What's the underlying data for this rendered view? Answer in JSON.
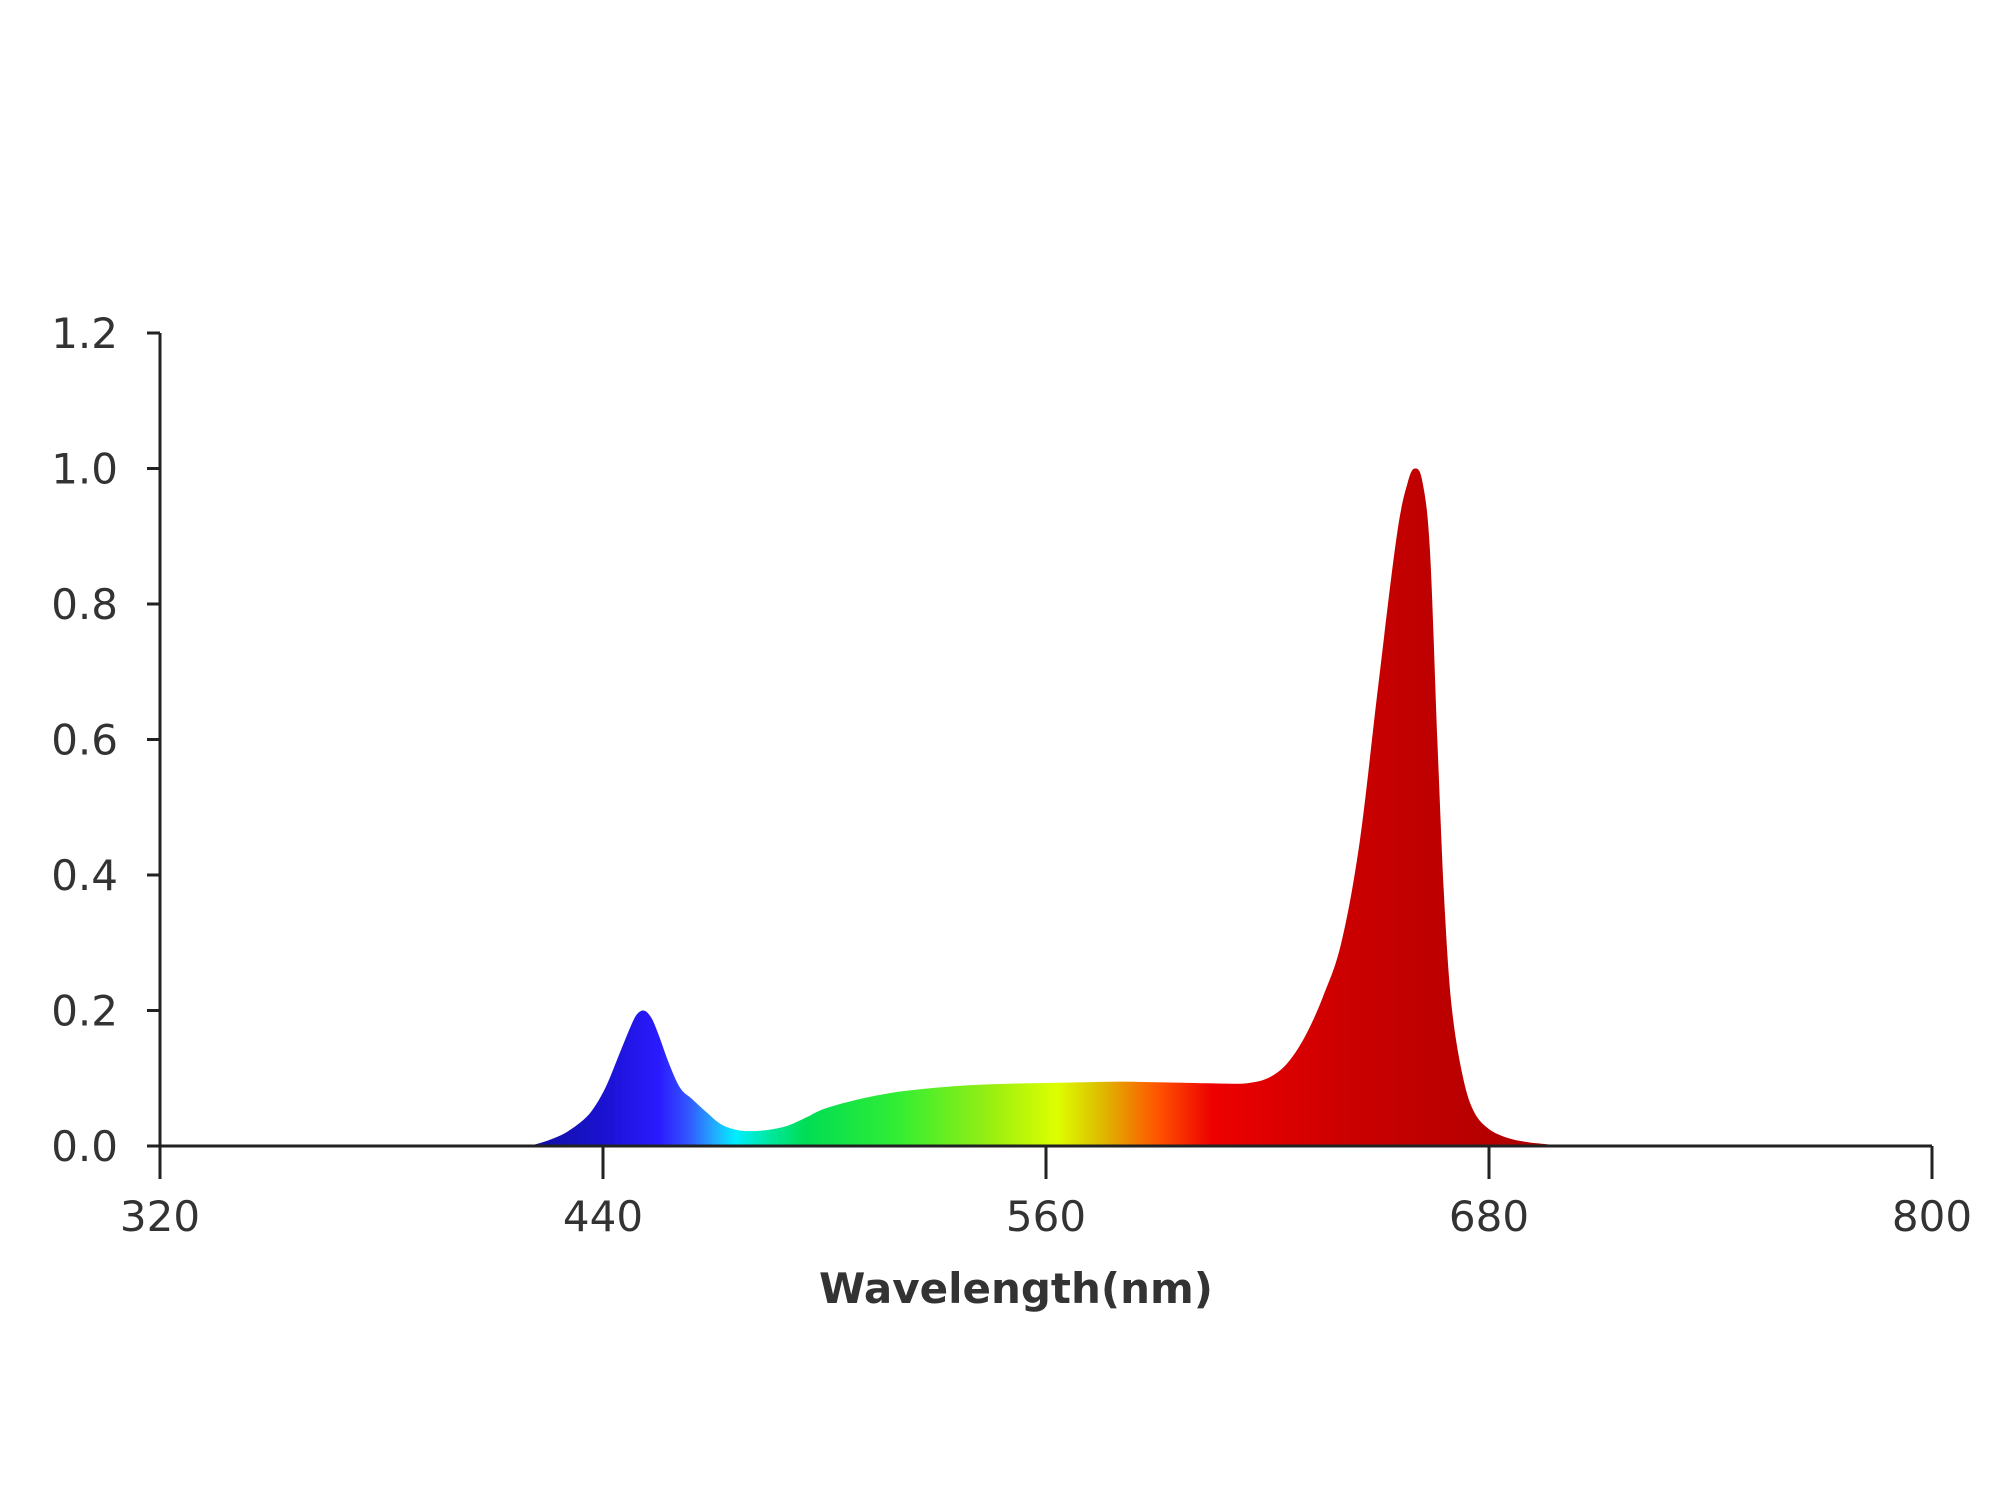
{
  "chart_data": {
    "type": "area",
    "title": "",
    "xlabel": "Wavelength(nm)",
    "ylabel": "",
    "xlim": [
      320,
      800
    ],
    "ylim": [
      0,
      1.2
    ],
    "x_ticks": [
      "320",
      "440",
      "560",
      "680",
      "800"
    ],
    "y_ticks": [
      "0.0",
      "0.2",
      "0.4",
      "0.6",
      "0.8",
      "1.0",
      "1.2"
    ],
    "grid": false,
    "legend": "none",
    "series": [
      {
        "values": [
          [
            420,
            0.0
          ],
          [
            425,
            0.008
          ],
          [
            430,
            0.02
          ],
          [
            435,
            0.04
          ],
          [
            438,
            0.06
          ],
          [
            441,
            0.09
          ],
          [
            444,
            0.13
          ],
          [
            447,
            0.17
          ],
          [
            449,
            0.193
          ],
          [
            451,
            0.2
          ],
          [
            453,
            0.19
          ],
          [
            455,
            0.165
          ],
          [
            458,
            0.12
          ],
          [
            461,
            0.085
          ],
          [
            464,
            0.07
          ],
          [
            468,
            0.05
          ],
          [
            472,
            0.032
          ],
          [
            476,
            0.024
          ],
          [
            480,
            0.022
          ],
          [
            485,
            0.024
          ],
          [
            490,
            0.03
          ],
          [
            495,
            0.042
          ],
          [
            500,
            0.055
          ],
          [
            510,
            0.07
          ],
          [
            520,
            0.08
          ],
          [
            530,
            0.086
          ],
          [
            540,
            0.09
          ],
          [
            550,
            0.092
          ],
          [
            560,
            0.093
          ],
          [
            570,
            0.094
          ],
          [
            580,
            0.095
          ],
          [
            590,
            0.094
          ],
          [
            600,
            0.093
          ],
          [
            610,
            0.092
          ],
          [
            615,
            0.093
          ],
          [
            620,
            0.1
          ],
          [
            625,
            0.12
          ],
          [
            630,
            0.16
          ],
          [
            635,
            0.22
          ],
          [
            640,
            0.3
          ],
          [
            645,
            0.45
          ],
          [
            650,
            0.68
          ],
          [
            655,
            0.9
          ],
          [
            658,
            0.98
          ],
          [
            660,
            1.0
          ],
          [
            662,
            0.98
          ],
          [
            664,
            0.88
          ],
          [
            666,
            0.6
          ],
          [
            668,
            0.35
          ],
          [
            670,
            0.2
          ],
          [
            673,
            0.1
          ],
          [
            676,
            0.05
          ],
          [
            680,
            0.025
          ],
          [
            685,
            0.012
          ],
          [
            690,
            0.006
          ],
          [
            695,
            0.003
          ],
          [
            700,
            0.0
          ]
        ]
      }
    ],
    "gradient_stops": [
      {
        "wavelength": 420,
        "color": "#1010a0"
      },
      {
        "wavelength": 440,
        "color": "#1a12d0"
      },
      {
        "wavelength": 455,
        "color": "#2a1aff"
      },
      {
        "wavelength": 463,
        "color": "#3355ff"
      },
      {
        "wavelength": 470,
        "color": "#22aaff"
      },
      {
        "wavelength": 476,
        "color": "#00eeff"
      },
      {
        "wavelength": 485,
        "color": "#00e8a0"
      },
      {
        "wavelength": 495,
        "color": "#00dd55"
      },
      {
        "wavelength": 520,
        "color": "#33ee33"
      },
      {
        "wavelength": 545,
        "color": "#99ee11"
      },
      {
        "wavelength": 563,
        "color": "#ddff00"
      },
      {
        "wavelength": 575,
        "color": "#ddbb00"
      },
      {
        "wavelength": 590,
        "color": "#ff5500"
      },
      {
        "wavelength": 605,
        "color": "#ee0000"
      },
      {
        "wavelength": 640,
        "color": "#cc0000"
      },
      {
        "wavelength": 700,
        "color": "#aa0000"
      }
    ]
  }
}
